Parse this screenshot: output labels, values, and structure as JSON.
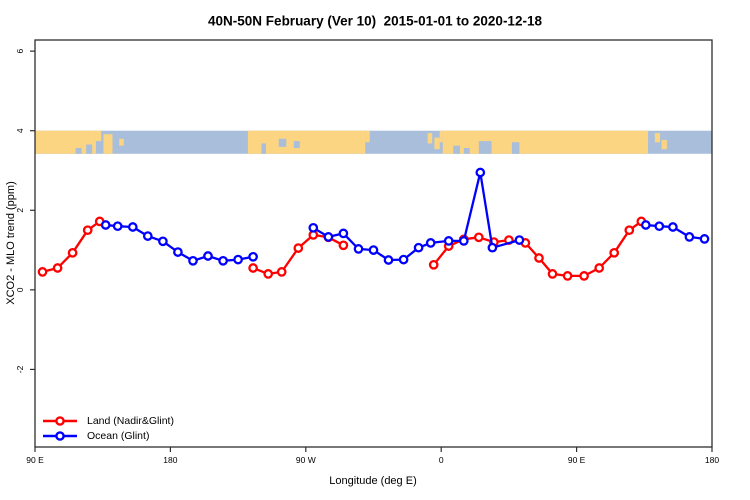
{
  "title": "40N-50N February (Ver 10)  2015-01-01 to 2020-12-18",
  "legend": {
    "items": [
      {
        "label": "Land (Nadir&Glint)",
        "color": "#ff0000"
      },
      {
        "label": "Ocean (Glint)",
        "color": "#0000ff"
      }
    ]
  },
  "chart_data": {
    "type": "line",
    "title": "40N-50N February (Ver 10)  2015-01-01 to 2020-12-18",
    "xlabel": "Longitude (deg E)",
    "ylabel": "XCO2 - MLO trend (ppm)",
    "xlim": [
      90,
      540
    ],
    "ylim": [
      -3.95,
      6.28
    ],
    "grid": false,
    "x_ticks": [
      {
        "value": 90,
        "label": "90 E"
      },
      {
        "value": 180,
        "label": "180"
      },
      {
        "value": 270,
        "label": "90 W"
      },
      {
        "value": 360,
        "label": "0"
      },
      {
        "value": 450,
        "label": "90 E"
      },
      {
        "value": 540,
        "label": "180"
      }
    ],
    "y_ticks": [
      {
        "value": -2,
        "label": "-2"
      },
      {
        "value": 0,
        "label": "0"
      },
      {
        "value": 2,
        "label": "2"
      },
      {
        "value": 4,
        "label": "4"
      },
      {
        "value": 6,
        "label": "6"
      }
    ],
    "series": [
      {
        "name": "Land (Nadir&Glint)",
        "color": "#ff0000",
        "segments": [
          [
            [
              95,
              0.45
            ],
            [
              105,
              0.55
            ],
            [
              115,
              0.93
            ],
            [
              125,
              1.5
            ],
            [
              133,
              1.72
            ]
          ],
          [
            [
              235,
              0.55
            ],
            [
              245,
              0.4
            ],
            [
              254,
              0.45
            ],
            [
              265,
              1.05
            ],
            [
              275,
              1.38
            ],
            [
              285,
              1.32
            ],
            [
              295,
              1.12
            ]
          ],
          [
            [
              355,
              0.63
            ],
            [
              365,
              1.1
            ],
            [
              375,
              1.27
            ],
            [
              385,
              1.32
            ],
            [
              395,
              1.2
            ],
            [
              405,
              1.25
            ],
            [
              416,
              1.18
            ],
            [
              425,
              0.8
            ],
            [
              434,
              0.4
            ],
            [
              444,
              0.35
            ],
            [
              455,
              0.35
            ],
            [
              465,
              0.55
            ],
            [
              475,
              0.93
            ],
            [
              485,
              1.5
            ],
            [
              493,
              1.72
            ]
          ]
        ]
      },
      {
        "name": "Ocean (Glint)",
        "color": "#0000ff",
        "segments": [
          [
            [
              137,
              1.63
            ],
            [
              145,
              1.6
            ],
            [
              155,
              1.58
            ],
            [
              165,
              1.35
            ],
            [
              175,
              1.22
            ],
            [
              185,
              0.95
            ],
            [
              195,
              0.73
            ],
            [
              205,
              0.85
            ],
            [
              215,
              0.73
            ],
            [
              225,
              0.76
            ],
            [
              235,
              0.83
            ]
          ],
          [
            [
              275,
              1.56
            ],
            [
              285,
              1.33
            ],
            [
              295,
              1.42
            ],
            [
              305,
              1.03
            ],
            [
              315,
              1.0
            ],
            [
              325,
              0.75
            ],
            [
              335,
              0.76
            ],
            [
              345,
              1.06
            ],
            [
              353,
              1.18
            ],
            [
              365,
              1.23
            ],
            [
              375,
              1.23
            ],
            [
              386,
              2.95
            ],
            [
              394,
              1.06
            ],
            [
              412,
              1.25
            ]
          ],
          [
            [
              496,
              1.63
            ],
            [
              505,
              1.6
            ],
            [
              514,
              1.58
            ],
            [
              525,
              1.33
            ],
            [
              535,
              1.28
            ]
          ]
        ]
      }
    ],
    "map_band": {
      "description": "land/ocean strip for 40N-50N",
      "ocean_color": "#a8bedb",
      "land_color": "#fcd583",
      "y_top": 4.0,
      "y_bottom": 3.42,
      "land_patches": [
        [
          90,
          130.5,
          0,
          1
        ],
        [
          130.5,
          134,
          0,
          0.45
        ],
        [
          135.5,
          141.5,
          0.15,
          1
        ],
        [
          146,
          149,
          0.35,
          0.65
        ],
        [
          231.5,
          309.5,
          0,
          1
        ],
        [
          309.5,
          312.5,
          0,
          0.5
        ],
        [
          351,
          354,
          0.1,
          0.55
        ],
        [
          355.5,
          359,
          0.3,
          0.8
        ],
        [
          359,
          361,
          0,
          0.5
        ],
        [
          361,
          497.5,
          0,
          1
        ],
        [
          502,
          505.5,
          0.1,
          0.5
        ],
        [
          506.5,
          510,
          0.4,
          0.8
        ]
      ],
      "ocean_patches": [
        [
          385,
          393.5,
          0.45,
          1
        ],
        [
          407,
          412,
          0.5,
          1
        ],
        [
          368,
          372.5,
          0.65,
          1
        ],
        [
          375,
          379,
          0.75,
          1
        ],
        [
          240.5,
          243.5,
          0.55,
          1
        ],
        [
          252,
          257,
          0.35,
          0.7
        ],
        [
          262,
          266,
          0.45,
          0.75
        ],
        [
          117,
          121,
          0.75,
          1
        ],
        [
          124,
          128,
          0.6,
          1
        ]
      ]
    }
  }
}
